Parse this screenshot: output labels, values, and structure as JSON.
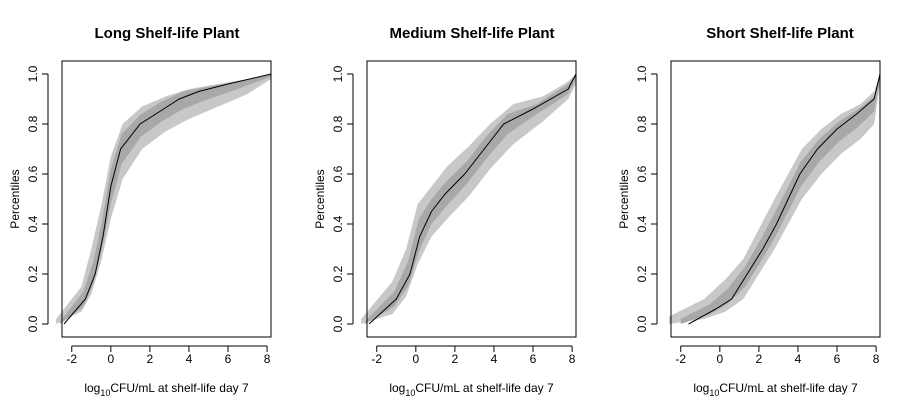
{
  "chart_data": [
    {
      "type": "line",
      "title": "Long Shelf-life Plant",
      "xlabel": {
        "prefix": "log",
        "sub": "10",
        "suffix": "CFU/mL at shelf-life day 7"
      },
      "ylabel": "Percentiles",
      "xlim": [
        -2.5,
        8.2
      ],
      "ylim": [
        0,
        1
      ],
      "xticks": [
        -2,
        0,
        2,
        4,
        6,
        8
      ],
      "yticks": [
        0.0,
        0.2,
        0.4,
        0.6,
        0.8,
        1.0
      ],
      "ytick_labels": [
        "0.0",
        "0.2",
        "0.4",
        "0.6",
        "0.8",
        "1.0"
      ],
      "grid": false,
      "series_color": "#000000",
      "band_outer_color": "#c8c8c8",
      "band_inner_color": "#a8a8a8",
      "median": {
        "x": [
          -2.4,
          -1.3,
          -0.8,
          -0.4,
          0.0,
          0.5,
          1.5,
          2.5,
          3.5,
          4.5,
          6.0,
          8.2
        ],
        "y": [
          0.0,
          0.1,
          0.2,
          0.35,
          0.55,
          0.7,
          0.8,
          0.85,
          0.9,
          0.93,
          0.96,
          1.0
        ]
      },
      "band_outer": {
        "x": [
          -2.8,
          -1.5,
          -1.0,
          -0.5,
          0.0,
          0.6,
          1.6,
          2.8,
          4.0,
          5.5,
          7.0,
          8.2
        ],
        "lower": [
          0.0,
          0.05,
          0.12,
          0.25,
          0.42,
          0.58,
          0.7,
          0.77,
          0.82,
          0.87,
          0.92,
          0.98
        ],
        "upper": [
          0.02,
          0.15,
          0.3,
          0.47,
          0.67,
          0.8,
          0.87,
          0.91,
          0.94,
          0.96,
          0.98,
          1.0
        ]
      },
      "band_inner": {
        "x": [
          -2.6,
          -1.4,
          -0.9,
          -0.45,
          0.0,
          0.55,
          1.55,
          2.6,
          3.7,
          5.0,
          6.5,
          8.2
        ],
        "lower": [
          0.0,
          0.07,
          0.16,
          0.3,
          0.48,
          0.64,
          0.75,
          0.81,
          0.86,
          0.9,
          0.94,
          0.99
        ],
        "upper": [
          0.01,
          0.13,
          0.25,
          0.41,
          0.62,
          0.76,
          0.84,
          0.89,
          0.93,
          0.95,
          0.97,
          1.0
        ]
      }
    },
    {
      "type": "line",
      "title": "Medium Shelf-life Plant",
      "xlabel": {
        "prefix": "log",
        "sub": "10",
        "suffix": "CFU/mL at shelf-life day 7"
      },
      "ylabel": "Percentiles",
      "xlim": [
        -2.5,
        8.2
      ],
      "ylim": [
        0,
        1
      ],
      "xticks": [
        -2,
        0,
        2,
        4,
        6,
        8
      ],
      "yticks": [
        0.0,
        0.2,
        0.4,
        0.6,
        0.8,
        1.0
      ],
      "ytick_labels": [
        "0.0",
        "0.2",
        "0.4",
        "0.6",
        "0.8",
        "1.0"
      ],
      "grid": false,
      "series_color": "#000000",
      "band_outer_color": "#c8c8c8",
      "band_inner_color": "#a8a8a8",
      "median": {
        "x": [
          -2.4,
          -1.0,
          -0.3,
          0.2,
          0.8,
          1.5,
          2.5,
          3.5,
          4.5,
          6.0,
          7.8,
          8.2
        ],
        "y": [
          0.0,
          0.1,
          0.2,
          0.35,
          0.45,
          0.52,
          0.6,
          0.7,
          0.8,
          0.86,
          0.94,
          1.0
        ]
      },
      "band_outer": {
        "x": [
          -2.8,
          -1.2,
          -0.5,
          0.1,
          0.8,
          1.6,
          2.7,
          3.8,
          5.0,
          6.5,
          7.8,
          8.2
        ],
        "lower": [
          0.0,
          0.04,
          0.11,
          0.24,
          0.35,
          0.42,
          0.51,
          0.62,
          0.72,
          0.81,
          0.9,
          0.96
        ],
        "upper": [
          0.02,
          0.17,
          0.3,
          0.48,
          0.55,
          0.63,
          0.71,
          0.8,
          0.88,
          0.91,
          0.97,
          1.0
        ]
      },
      "band_inner": {
        "x": [
          -2.6,
          -1.1,
          -0.4,
          0.15,
          0.8,
          1.55,
          2.6,
          3.6,
          4.7,
          6.2,
          7.8,
          8.2
        ],
        "lower": [
          0.0,
          0.07,
          0.15,
          0.29,
          0.4,
          0.47,
          0.56,
          0.66,
          0.76,
          0.84,
          0.92,
          0.98
        ],
        "upper": [
          0.01,
          0.13,
          0.25,
          0.42,
          0.5,
          0.57,
          0.65,
          0.75,
          0.84,
          0.88,
          0.96,
          1.0
        ]
      }
    },
    {
      "type": "line",
      "title": "Short Shelf-life Plant",
      "xlabel": {
        "prefix": "log",
        "sub": "10",
        "suffix": "CFU/mL at shelf-life day 7"
      },
      "ylabel": "Percentiles",
      "xlim": [
        -2.5,
        8.2
      ],
      "ylim": [
        0,
        1
      ],
      "xticks": [
        -2,
        0,
        2,
        4,
        6,
        8
      ],
      "yticks": [
        0.0,
        0.2,
        0.4,
        0.6,
        0.8,
        1.0
      ],
      "ytick_labels": [
        "0.0",
        "0.2",
        "0.4",
        "0.6",
        "0.8",
        "1.0"
      ],
      "grid": false,
      "series_color": "#000000",
      "band_outer_color": "#c8c8c8",
      "band_inner_color": "#a8a8a8",
      "median": {
        "x": [
          -1.6,
          -0.2,
          0.6,
          1.4,
          2.2,
          2.9,
          3.5,
          4.1,
          5.0,
          6.0,
          7.0,
          7.9,
          8.2
        ],
        "y": [
          0.0,
          0.06,
          0.1,
          0.2,
          0.3,
          0.4,
          0.5,
          0.6,
          0.7,
          0.78,
          0.84,
          0.9,
          1.0
        ]
      },
      "band_outer": {
        "x": [
          -2.6,
          -0.8,
          0.3,
          1.2,
          2.0,
          2.8,
          3.5,
          4.2,
          5.2,
          6.2,
          7.2,
          7.9,
          8.2
        ],
        "lower": [
          0.0,
          0.02,
          0.05,
          0.1,
          0.2,
          0.3,
          0.4,
          0.5,
          0.6,
          0.68,
          0.74,
          0.8,
          0.96
        ],
        "upper": [
          0.03,
          0.1,
          0.18,
          0.26,
          0.38,
          0.5,
          0.6,
          0.7,
          0.78,
          0.84,
          0.88,
          0.93,
          1.0
        ]
      },
      "band_inner": {
        "x": [
          -2.0,
          -0.5,
          0.4,
          1.3,
          2.1,
          2.85,
          3.5,
          4.15,
          5.1,
          6.1,
          7.1,
          7.9,
          8.2
        ],
        "lower": [
          0.0,
          0.04,
          0.08,
          0.15,
          0.25,
          0.35,
          0.45,
          0.55,
          0.65,
          0.73,
          0.79,
          0.85,
          0.98
        ],
        "upper": [
          0.02,
          0.08,
          0.14,
          0.23,
          0.34,
          0.45,
          0.55,
          0.65,
          0.74,
          0.81,
          0.86,
          0.91,
          1.0
        ]
      }
    }
  ]
}
